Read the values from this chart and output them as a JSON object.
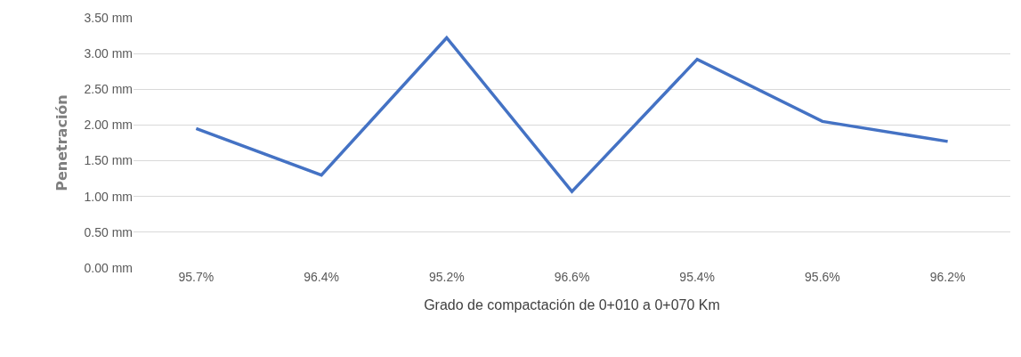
{
  "chart_data": {
    "type": "line",
    "xlabel": "Grado de compactación de 0+010 a 0+070 Km",
    "ylabel": "Penetración",
    "categories": [
      "95.7%",
      "96.4%",
      "95.2%",
      "96.6%",
      "95.4%",
      "95.6%",
      "96.2%"
    ],
    "series": [
      {
        "color": "#4472c4",
        "values": [
          1.95,
          1.3,
          3.22,
          1.07,
          2.92,
          2.05,
          1.77
        ]
      }
    ],
    "ylim": [
      0,
      3.5
    ],
    "yticks": [
      {
        "value": 0,
        "label": "0.00 mm"
      },
      {
        "value": 0.5,
        "label": "0.50 mm"
      },
      {
        "value": 1,
        "label": "1.00 mm"
      },
      {
        "value": 1.5,
        "label": "1.50 mm"
      },
      {
        "value": 2,
        "label": "2.00 mm"
      },
      {
        "value": 2.5,
        "label": "2.50 mm"
      },
      {
        "value": 3,
        "label": "3.00 mm"
      },
      {
        "value": 3.5,
        "label": "3.50 mm"
      }
    ],
    "grid": "y",
    "marker": "none",
    "line_style": "solid"
  }
}
